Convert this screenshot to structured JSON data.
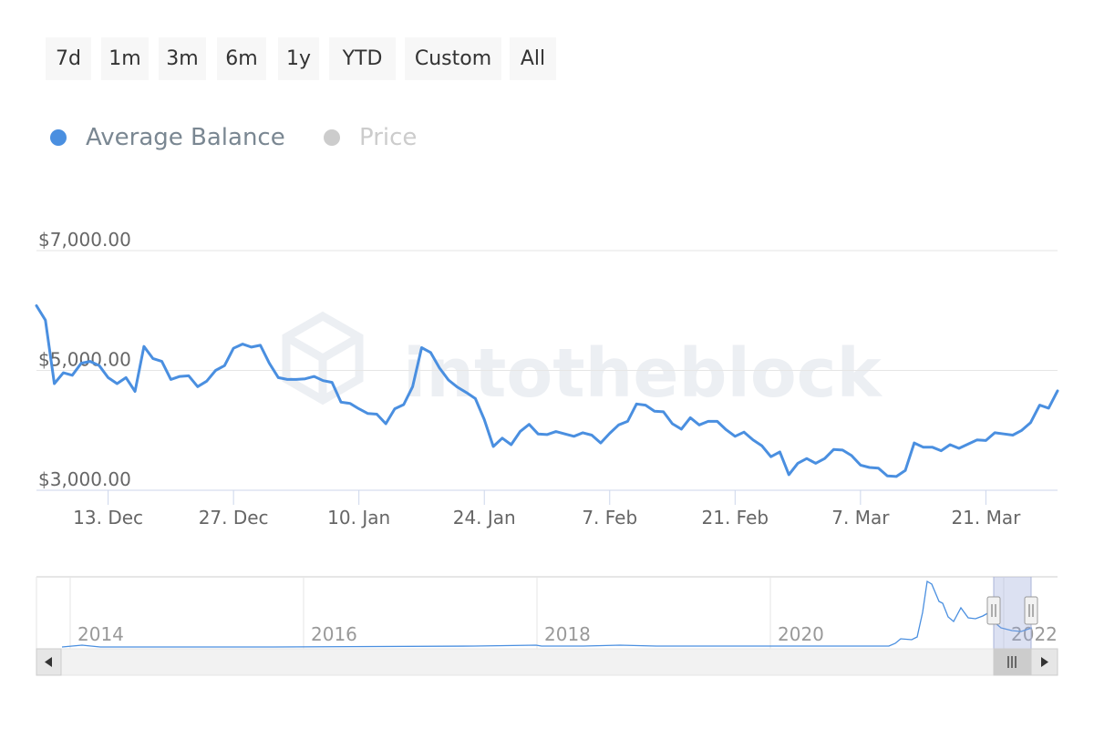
{
  "range_buttons": [
    "7d",
    "1m",
    "3m",
    "6m",
    "1y",
    "YTD",
    "Custom",
    "All"
  ],
  "legend": [
    {
      "label": "Average Balance",
      "color": "#4a8fe0",
      "active": true
    },
    {
      "label": "Price",
      "color": "#cccccc",
      "active": false
    }
  ],
  "watermark": "intotheblock",
  "colors": {
    "series": "#4a8fe0",
    "grid": "#e6e6e6",
    "axis_text": "#666666",
    "navigator_mask": "#9aa9da",
    "scrollbar": "#f2f2f2"
  },
  "chart_data": {
    "type": "line",
    "title": "",
    "xlabel": "",
    "ylabel": "",
    "ylim": [
      3000,
      7000
    ],
    "y_ticks": [
      {
        "value": 3000,
        "label": "$3,000.00"
      },
      {
        "value": 5000,
        "label": "$5,000.00"
      },
      {
        "value": 7000,
        "label": "$7,000.00"
      }
    ],
    "x_range": [
      "2021-12-05",
      "2022-03-29"
    ],
    "x_ticks": [
      {
        "date": "2021-12-13",
        "label": "13. Dec"
      },
      {
        "date": "2021-12-27",
        "label": "27. Dec"
      },
      {
        "date": "2022-01-10",
        "label": "10. Jan"
      },
      {
        "date": "2022-01-24",
        "label": "24. Jan"
      },
      {
        "date": "2022-02-07",
        "label": "7. Feb"
      },
      {
        "date": "2022-02-21",
        "label": "21. Feb"
      },
      {
        "date": "2022-03-07",
        "label": "7. Mar"
      },
      {
        "date": "2022-03-21",
        "label": "21. Mar"
      }
    ],
    "grid": true,
    "legend_position": "top-left",
    "series": [
      {
        "name": "Average Balance",
        "points": [
          [
            "2021-12-05",
            6080
          ],
          [
            "2021-12-06",
            5840
          ],
          [
            "2021-12-07",
            4780
          ],
          [
            "2021-12-08",
            4960
          ],
          [
            "2021-12-09",
            4920
          ],
          [
            "2021-12-10",
            5120
          ],
          [
            "2021-12-11",
            5150
          ],
          [
            "2021-12-12",
            5080
          ],
          [
            "2021-12-13",
            4880
          ],
          [
            "2021-12-14",
            4780
          ],
          [
            "2021-12-15",
            4880
          ],
          [
            "2021-12-16",
            4650
          ],
          [
            "2021-12-17",
            5400
          ],
          [
            "2021-12-18",
            5200
          ],
          [
            "2021-12-19",
            5150
          ],
          [
            "2021-12-20",
            4850
          ],
          [
            "2021-12-21",
            4900
          ],
          [
            "2021-12-22",
            4910
          ],
          [
            "2021-12-23",
            4730
          ],
          [
            "2021-12-24",
            4820
          ],
          [
            "2021-12-25",
            5000
          ],
          [
            "2021-12-26",
            5080
          ],
          [
            "2021-12-27",
            5370
          ],
          [
            "2021-12-28",
            5440
          ],
          [
            "2021-12-29",
            5390
          ],
          [
            "2021-12-30",
            5420
          ],
          [
            "2021-12-31",
            5120
          ],
          [
            "2022-01-01",
            4880
          ],
          [
            "2022-01-02",
            4850
          ],
          [
            "2022-01-03",
            4850
          ],
          [
            "2022-01-04",
            4860
          ],
          [
            "2022-01-05",
            4900
          ],
          [
            "2022-01-06",
            4830
          ],
          [
            "2022-01-07",
            4800
          ],
          [
            "2022-01-08",
            4470
          ],
          [
            "2022-01-09",
            4450
          ],
          [
            "2022-01-10",
            4360
          ],
          [
            "2022-01-11",
            4280
          ],
          [
            "2022-01-12",
            4270
          ],
          [
            "2022-01-13",
            4110
          ],
          [
            "2022-01-14",
            4360
          ],
          [
            "2022-01-15",
            4430
          ],
          [
            "2022-01-16",
            4730
          ],
          [
            "2022-01-17",
            5380
          ],
          [
            "2022-01-18",
            5300
          ],
          [
            "2022-01-19",
            5040
          ],
          [
            "2022-01-20",
            4840
          ],
          [
            "2022-01-21",
            4720
          ],
          [
            "2022-01-22",
            4630
          ],
          [
            "2022-01-23",
            4530
          ],
          [
            "2022-01-24",
            4180
          ],
          [
            "2022-01-25",
            3730
          ],
          [
            "2022-01-26",
            3870
          ],
          [
            "2022-01-27",
            3760
          ],
          [
            "2022-01-28",
            3980
          ],
          [
            "2022-01-29",
            4100
          ],
          [
            "2022-01-30",
            3940
          ],
          [
            "2022-01-31",
            3930
          ],
          [
            "2022-02-01",
            3980
          ],
          [
            "2022-02-02",
            3940
          ],
          [
            "2022-02-03",
            3900
          ],
          [
            "2022-02-04",
            3960
          ],
          [
            "2022-02-05",
            3920
          ],
          [
            "2022-02-06",
            3790
          ],
          [
            "2022-02-07",
            3950
          ],
          [
            "2022-02-08",
            4090
          ],
          [
            "2022-02-09",
            4150
          ],
          [
            "2022-02-10",
            4440
          ],
          [
            "2022-02-11",
            4420
          ],
          [
            "2022-02-12",
            4320
          ],
          [
            "2022-02-13",
            4310
          ],
          [
            "2022-02-14",
            4110
          ],
          [
            "2022-02-15",
            4020
          ],
          [
            "2022-02-16",
            4210
          ],
          [
            "2022-02-17",
            4090
          ],
          [
            "2022-02-18",
            4150
          ],
          [
            "2022-02-19",
            4150
          ],
          [
            "2022-02-20",
            4010
          ],
          [
            "2022-02-21",
            3900
          ],
          [
            "2022-02-22",
            3970
          ],
          [
            "2022-02-23",
            3840
          ],
          [
            "2022-02-24",
            3740
          ],
          [
            "2022-02-25",
            3560
          ],
          [
            "2022-02-26",
            3640
          ],
          [
            "2022-02-27",
            3260
          ],
          [
            "2022-02-28",
            3450
          ],
          [
            "2022-03-01",
            3530
          ],
          [
            "2022-03-02",
            3450
          ],
          [
            "2022-03-03",
            3530
          ],
          [
            "2022-03-04",
            3680
          ],
          [
            "2022-03-05",
            3670
          ],
          [
            "2022-03-06",
            3580
          ],
          [
            "2022-03-07",
            3420
          ],
          [
            "2022-03-08",
            3380
          ],
          [
            "2022-03-09",
            3370
          ],
          [
            "2022-03-10",
            3240
          ],
          [
            "2022-03-11",
            3230
          ],
          [
            "2022-03-12",
            3330
          ],
          [
            "2022-03-13",
            3790
          ],
          [
            "2022-03-14",
            3720
          ],
          [
            "2022-03-15",
            3720
          ],
          [
            "2022-03-16",
            3660
          ],
          [
            "2022-03-17",
            3760
          ],
          [
            "2022-03-18",
            3700
          ],
          [
            "2022-03-19",
            3770
          ],
          [
            "2022-03-20",
            3840
          ],
          [
            "2022-03-21",
            3830
          ],
          [
            "2022-03-22",
            3960
          ],
          [
            "2022-03-23",
            3940
          ],
          [
            "2022-03-24",
            3920
          ],
          [
            "2022-03-25",
            4000
          ],
          [
            "2022-03-26",
            4130
          ],
          [
            "2022-03-27",
            4420
          ],
          [
            "2022-03-28",
            4370
          ],
          [
            "2022-03-29",
            4660
          ]
        ]
      }
    ],
    "navigator": {
      "x_ticks": [
        "2014",
        "2016",
        "2018",
        "2020",
        "2022"
      ],
      "selected_range": [
        "2021-12-05",
        "2022-03-29"
      ]
    }
  }
}
